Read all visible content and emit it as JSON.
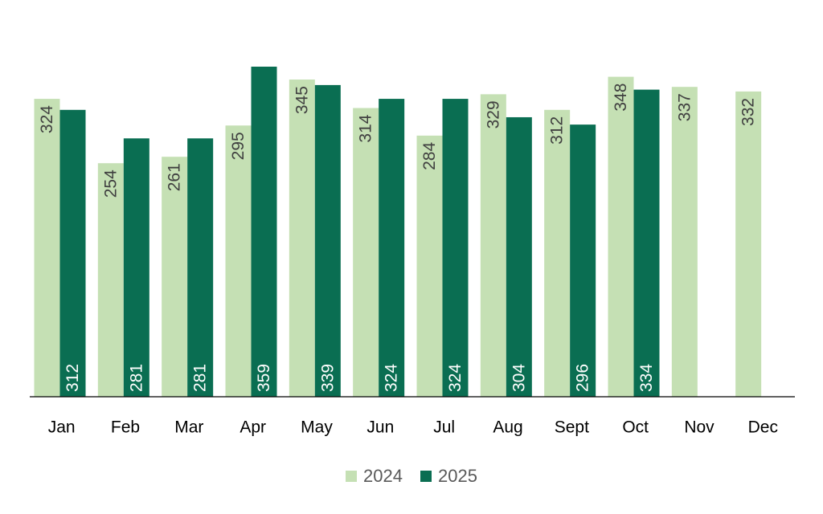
{
  "chart_data": {
    "type": "bar",
    "categories": [
      "Jan",
      "Feb",
      "Mar",
      "Apr",
      "May",
      "Jun",
      "Jul",
      "Aug",
      "Sept",
      "Oct",
      "Nov",
      "Dec"
    ],
    "series": [
      {
        "name": "2024",
        "color": "#c5e0b4",
        "values": [
          324,
          254,
          261,
          295,
          345,
          314,
          284,
          329,
          312,
          348,
          337,
          332
        ]
      },
      {
        "name": "2025",
        "color": "#0a6e52",
        "values": [
          312,
          281,
          281,
          359,
          339,
          324,
          324,
          304,
          296,
          334,
          null,
          null
        ]
      }
    ],
    "title": "",
    "xlabel": "",
    "ylabel": "",
    "ylim": [
      0,
      359
    ],
    "grid": false,
    "legend_position": "bottom",
    "data_labels": "rotated, inside bars"
  }
}
